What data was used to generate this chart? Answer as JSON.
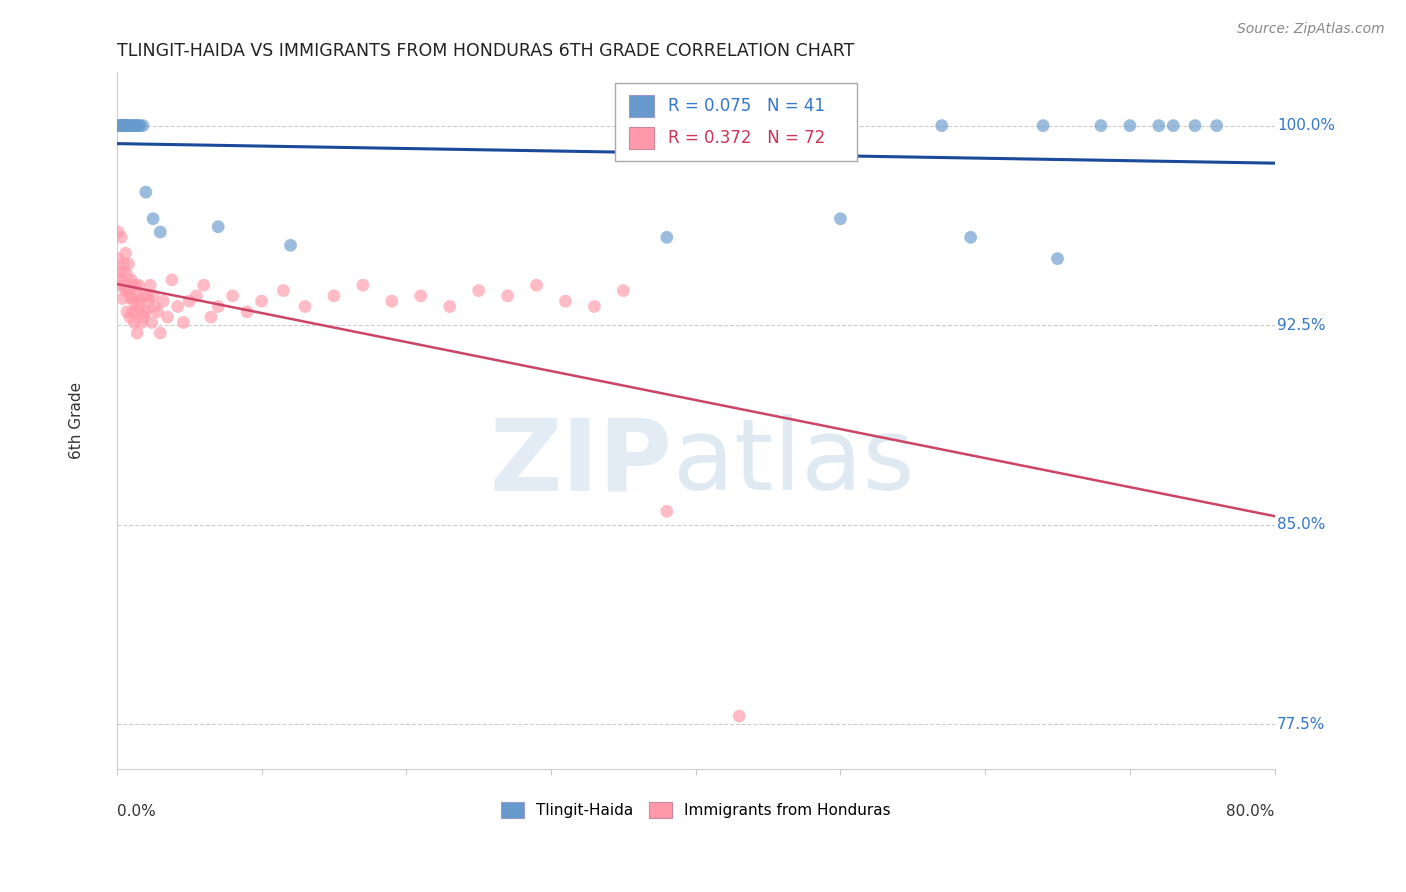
{
  "title": "TLINGIT-HAIDA VS IMMIGRANTS FROM HONDURAS 6TH GRADE CORRELATION CHART",
  "source": "Source: ZipAtlas.com",
  "ylabel": "6th Grade",
  "legend_blue_label": "Tlingit-Haida",
  "legend_pink_label": "Immigrants from Honduras",
  "r_blue": 0.075,
  "n_blue": 41,
  "r_pink": 0.372,
  "n_pink": 72,
  "blue_color": "#6699CC",
  "pink_color": "#FF99AA",
  "blue_line_color": "#1A4A99",
  "pink_line_color": "#CC4466",
  "xlim": [
    0.0,
    0.8
  ],
  "ylim": [
    0.758,
    1.02
  ],
  "ytick_positions": [
    1.0,
    0.925,
    0.85,
    0.775
  ],
  "ytick_labels": [
    "100.0%",
    "92.5%",
    "85.0%",
    "77.5%"
  ],
  "blue_x": [
    0.001,
    0.002,
    0.002,
    0.003,
    0.003,
    0.004,
    0.004,
    0.005,
    0.005,
    0.006,
    0.006,
    0.007,
    0.007,
    0.008,
    0.008,
    0.009,
    0.01,
    0.011,
    0.012,
    0.013,
    0.014,
    0.015,
    0.016,
    0.018,
    0.02,
    0.025,
    0.03,
    0.07,
    0.12,
    0.38,
    0.5,
    0.57,
    0.59,
    0.64,
    0.65,
    0.68,
    0.7,
    0.72,
    0.73,
    0.745,
    0.76
  ],
  "blue_y": [
    1.0,
    1.0,
    1.0,
    1.0,
    1.0,
    1.0,
    1.0,
    1.0,
    1.0,
    1.0,
    1.0,
    1.0,
    1.0,
    1.0,
    1.0,
    1.0,
    1.0,
    1.0,
    1.0,
    1.0,
    1.0,
    1.0,
    1.0,
    1.0,
    0.975,
    0.965,
    0.96,
    0.962,
    0.955,
    0.958,
    0.965,
    1.0,
    0.958,
    1.0,
    0.95,
    1.0,
    1.0,
    1.0,
    1.0,
    1.0,
    1.0
  ],
  "pink_x": [
    0.001,
    0.001,
    0.002,
    0.002,
    0.003,
    0.003,
    0.004,
    0.004,
    0.005,
    0.005,
    0.006,
    0.006,
    0.007,
    0.007,
    0.008,
    0.008,
    0.009,
    0.009,
    0.01,
    0.01,
    0.011,
    0.011,
    0.012,
    0.012,
    0.013,
    0.013,
    0.014,
    0.014,
    0.015,
    0.015,
    0.016,
    0.017,
    0.018,
    0.018,
    0.019,
    0.02,
    0.021,
    0.022,
    0.023,
    0.024,
    0.025,
    0.026,
    0.028,
    0.03,
    0.032,
    0.035,
    0.038,
    0.042,
    0.046,
    0.05,
    0.055,
    0.06,
    0.065,
    0.07,
    0.08,
    0.09,
    0.1,
    0.115,
    0.13,
    0.15,
    0.17,
    0.19,
    0.21,
    0.23,
    0.25,
    0.27,
    0.29,
    0.31,
    0.33,
    0.35,
    0.38,
    0.43
  ],
  "pink_y": [
    0.96,
    0.95,
    0.945,
    0.94,
    0.958,
    0.942,
    0.945,
    0.935,
    0.94,
    0.948,
    0.952,
    0.938,
    0.944,
    0.93,
    0.938,
    0.948,
    0.936,
    0.928,
    0.942,
    0.935,
    0.94,
    0.93,
    0.934,
    0.926,
    0.94,
    0.93,
    0.936,
    0.922,
    0.94,
    0.932,
    0.934,
    0.926,
    0.936,
    0.928,
    0.93,
    0.93,
    0.936,
    0.934,
    0.94,
    0.926,
    0.936,
    0.932,
    0.93,
    0.922,
    0.934,
    0.928,
    0.942,
    0.932,
    0.926,
    0.934,
    0.936,
    0.94,
    0.928,
    0.932,
    0.936,
    0.93,
    0.934,
    0.938,
    0.932,
    0.936,
    0.94,
    0.934,
    0.936,
    0.932,
    0.938,
    0.936,
    0.94,
    0.934,
    0.932,
    0.938,
    0.855,
    0.778
  ]
}
